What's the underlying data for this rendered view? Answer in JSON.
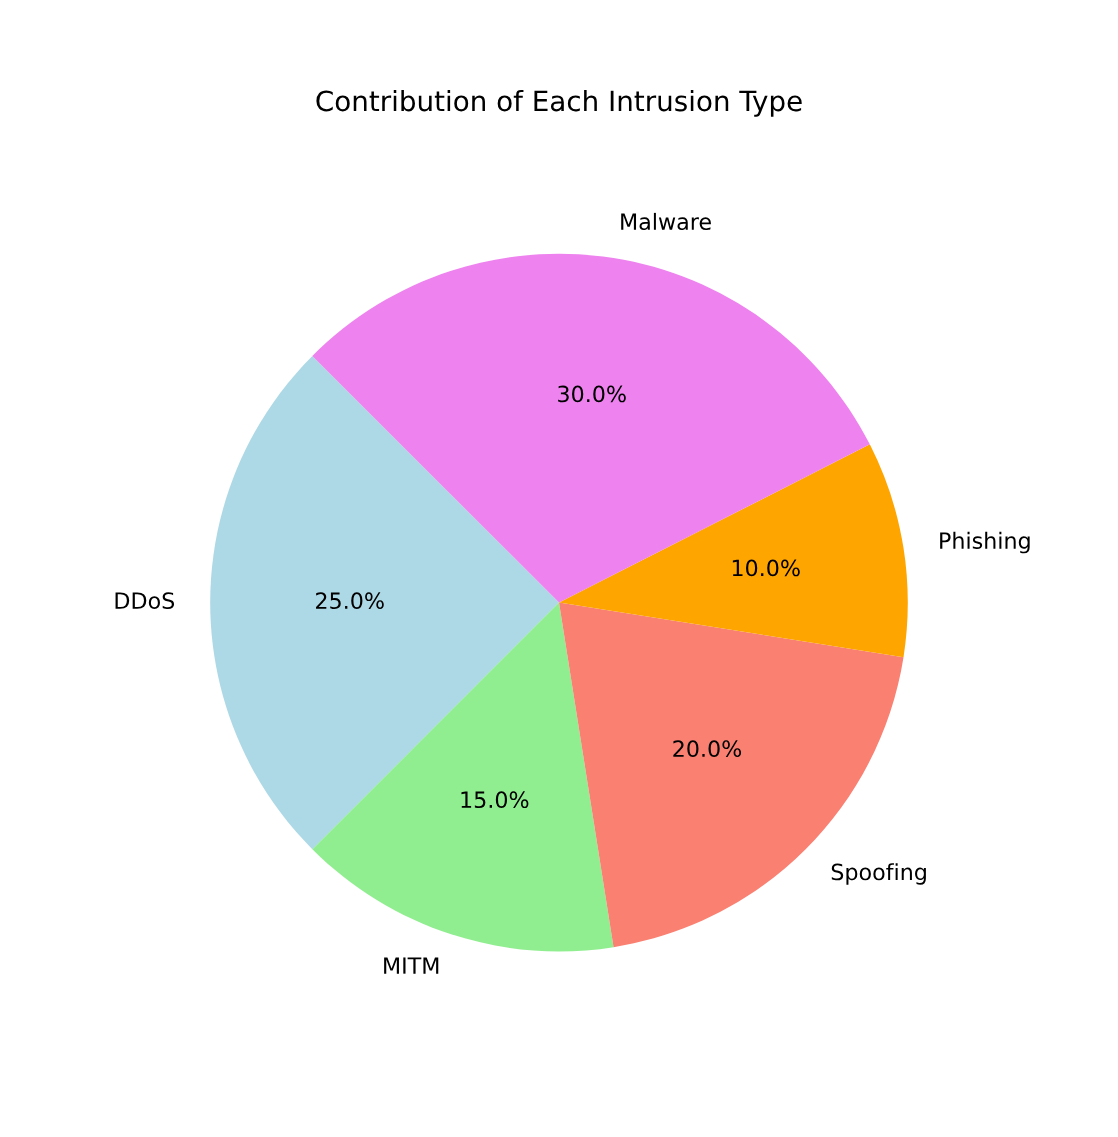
{
  "chart_data": {
    "type": "pie",
    "title": "Contribution of Each Intrusion Type",
    "categories": [
      "DDoS",
      "MITM",
      "Spoofing",
      "Phishing",
      "Malware"
    ],
    "values": [
      25,
      15,
      20,
      10,
      30
    ],
    "colors": [
      "#add8e6",
      "#90ee90",
      "#fa8072",
      "#ffa500",
      "#ee82ee"
    ],
    "value_labels": [
      "25.0%",
      "15.0%",
      "20.0%",
      "10.0%",
      "30.0%"
    ]
  }
}
